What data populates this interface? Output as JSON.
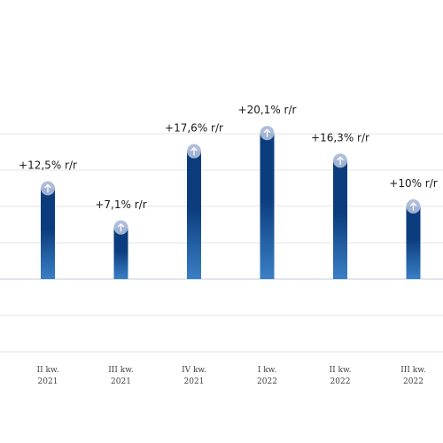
{
  "chart_data": {
    "type": "bar",
    "categories": [
      [
        "II kw.",
        "2021"
      ],
      [
        "III kw.",
        "2021"
      ],
      [
        "IV kw.",
        "2021"
      ],
      [
        "I kw.",
        "2022"
      ],
      [
        "II kw.",
        "2022"
      ],
      [
        "III kw.",
        "2022"
      ]
    ],
    "values": [
      12.5,
      7.1,
      17.6,
      20.1,
      16.3,
      10.0
    ],
    "value_labels": [
      "+12,5% r/r",
      "+7,1% r/r",
      "+17,6% r/r",
      "+20,1% r/r",
      "+16,3% r/r",
      "+10% r/r"
    ],
    "marker_icon": "arrow-up-icon",
    "ylim": [
      -10,
      25
    ],
    "gridlines": [
      -10,
      -5,
      0,
      5,
      10,
      15,
      20
    ],
    "grid": true,
    "legend": "none",
    "colors": {
      "bar_top": "#0b3d7e",
      "bar_bottom": "#3a7fc6",
      "marker": "#aab9d8",
      "grid": "#e6e6e6",
      "zero_line": "#cfd6e0"
    }
  }
}
